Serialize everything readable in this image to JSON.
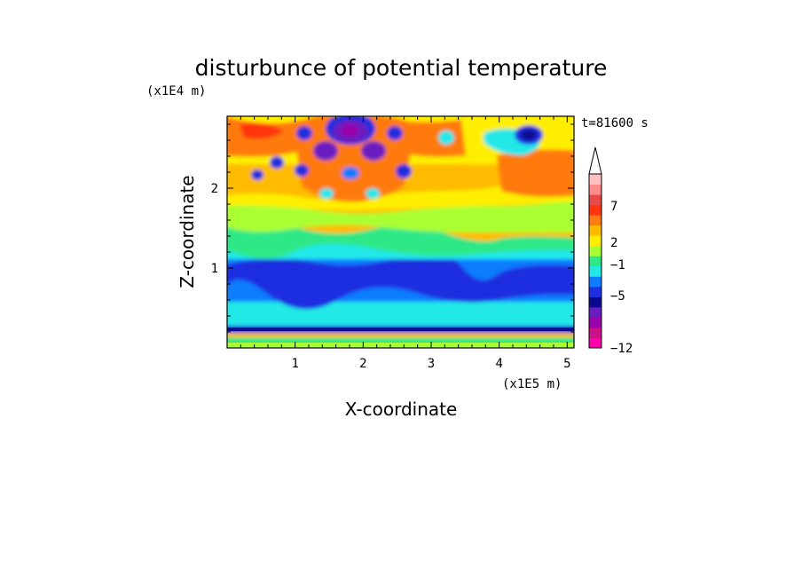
{
  "chart_data": {
    "type": "heatmap",
    "title": "disturbunce of potential temperature",
    "y_multiplier_label": "(x1E4 m)",
    "x_multiplier_label": "(x1E5 m)",
    "time_label": "t=81600 s",
    "xlabel": "X-coordinate",
    "ylabel": "Z-coordinate",
    "xlim": [
      0,
      5.1
    ],
    "ylim": [
      0,
      2.9
    ],
    "x_ticks": [
      1,
      2,
      3,
      4,
      5
    ],
    "y_ticks": [
      1,
      2
    ],
    "x_tick_labels": [
      "1",
      "2",
      "3",
      "4",
      "5"
    ],
    "y_tick_labels": [
      "1",
      "2"
    ],
    "colorbar": {
      "labeled_levels": [
        7,
        2,
        -1,
        -5,
        -12
      ],
      "labels": [
        "7",
        "2",
        "−1",
        "−5",
        "−12"
      ],
      "colors_bottom_to_top": [
        "#ff00aa",
        "#cc1188",
        "#9900aa",
        "#6a1cc0",
        "#0a0a90",
        "#1f2ee0",
        "#0f7cff",
        "#24e8e8",
        "#2ee888",
        "#aaff33",
        "#ffee00",
        "#ffbb00",
        "#ff7a10",
        "#ff3410",
        "#e84a4a",
        "#ff8c8c",
        "#ffc0c0"
      ],
      "extend_top": true
    },
    "grid": false
  }
}
